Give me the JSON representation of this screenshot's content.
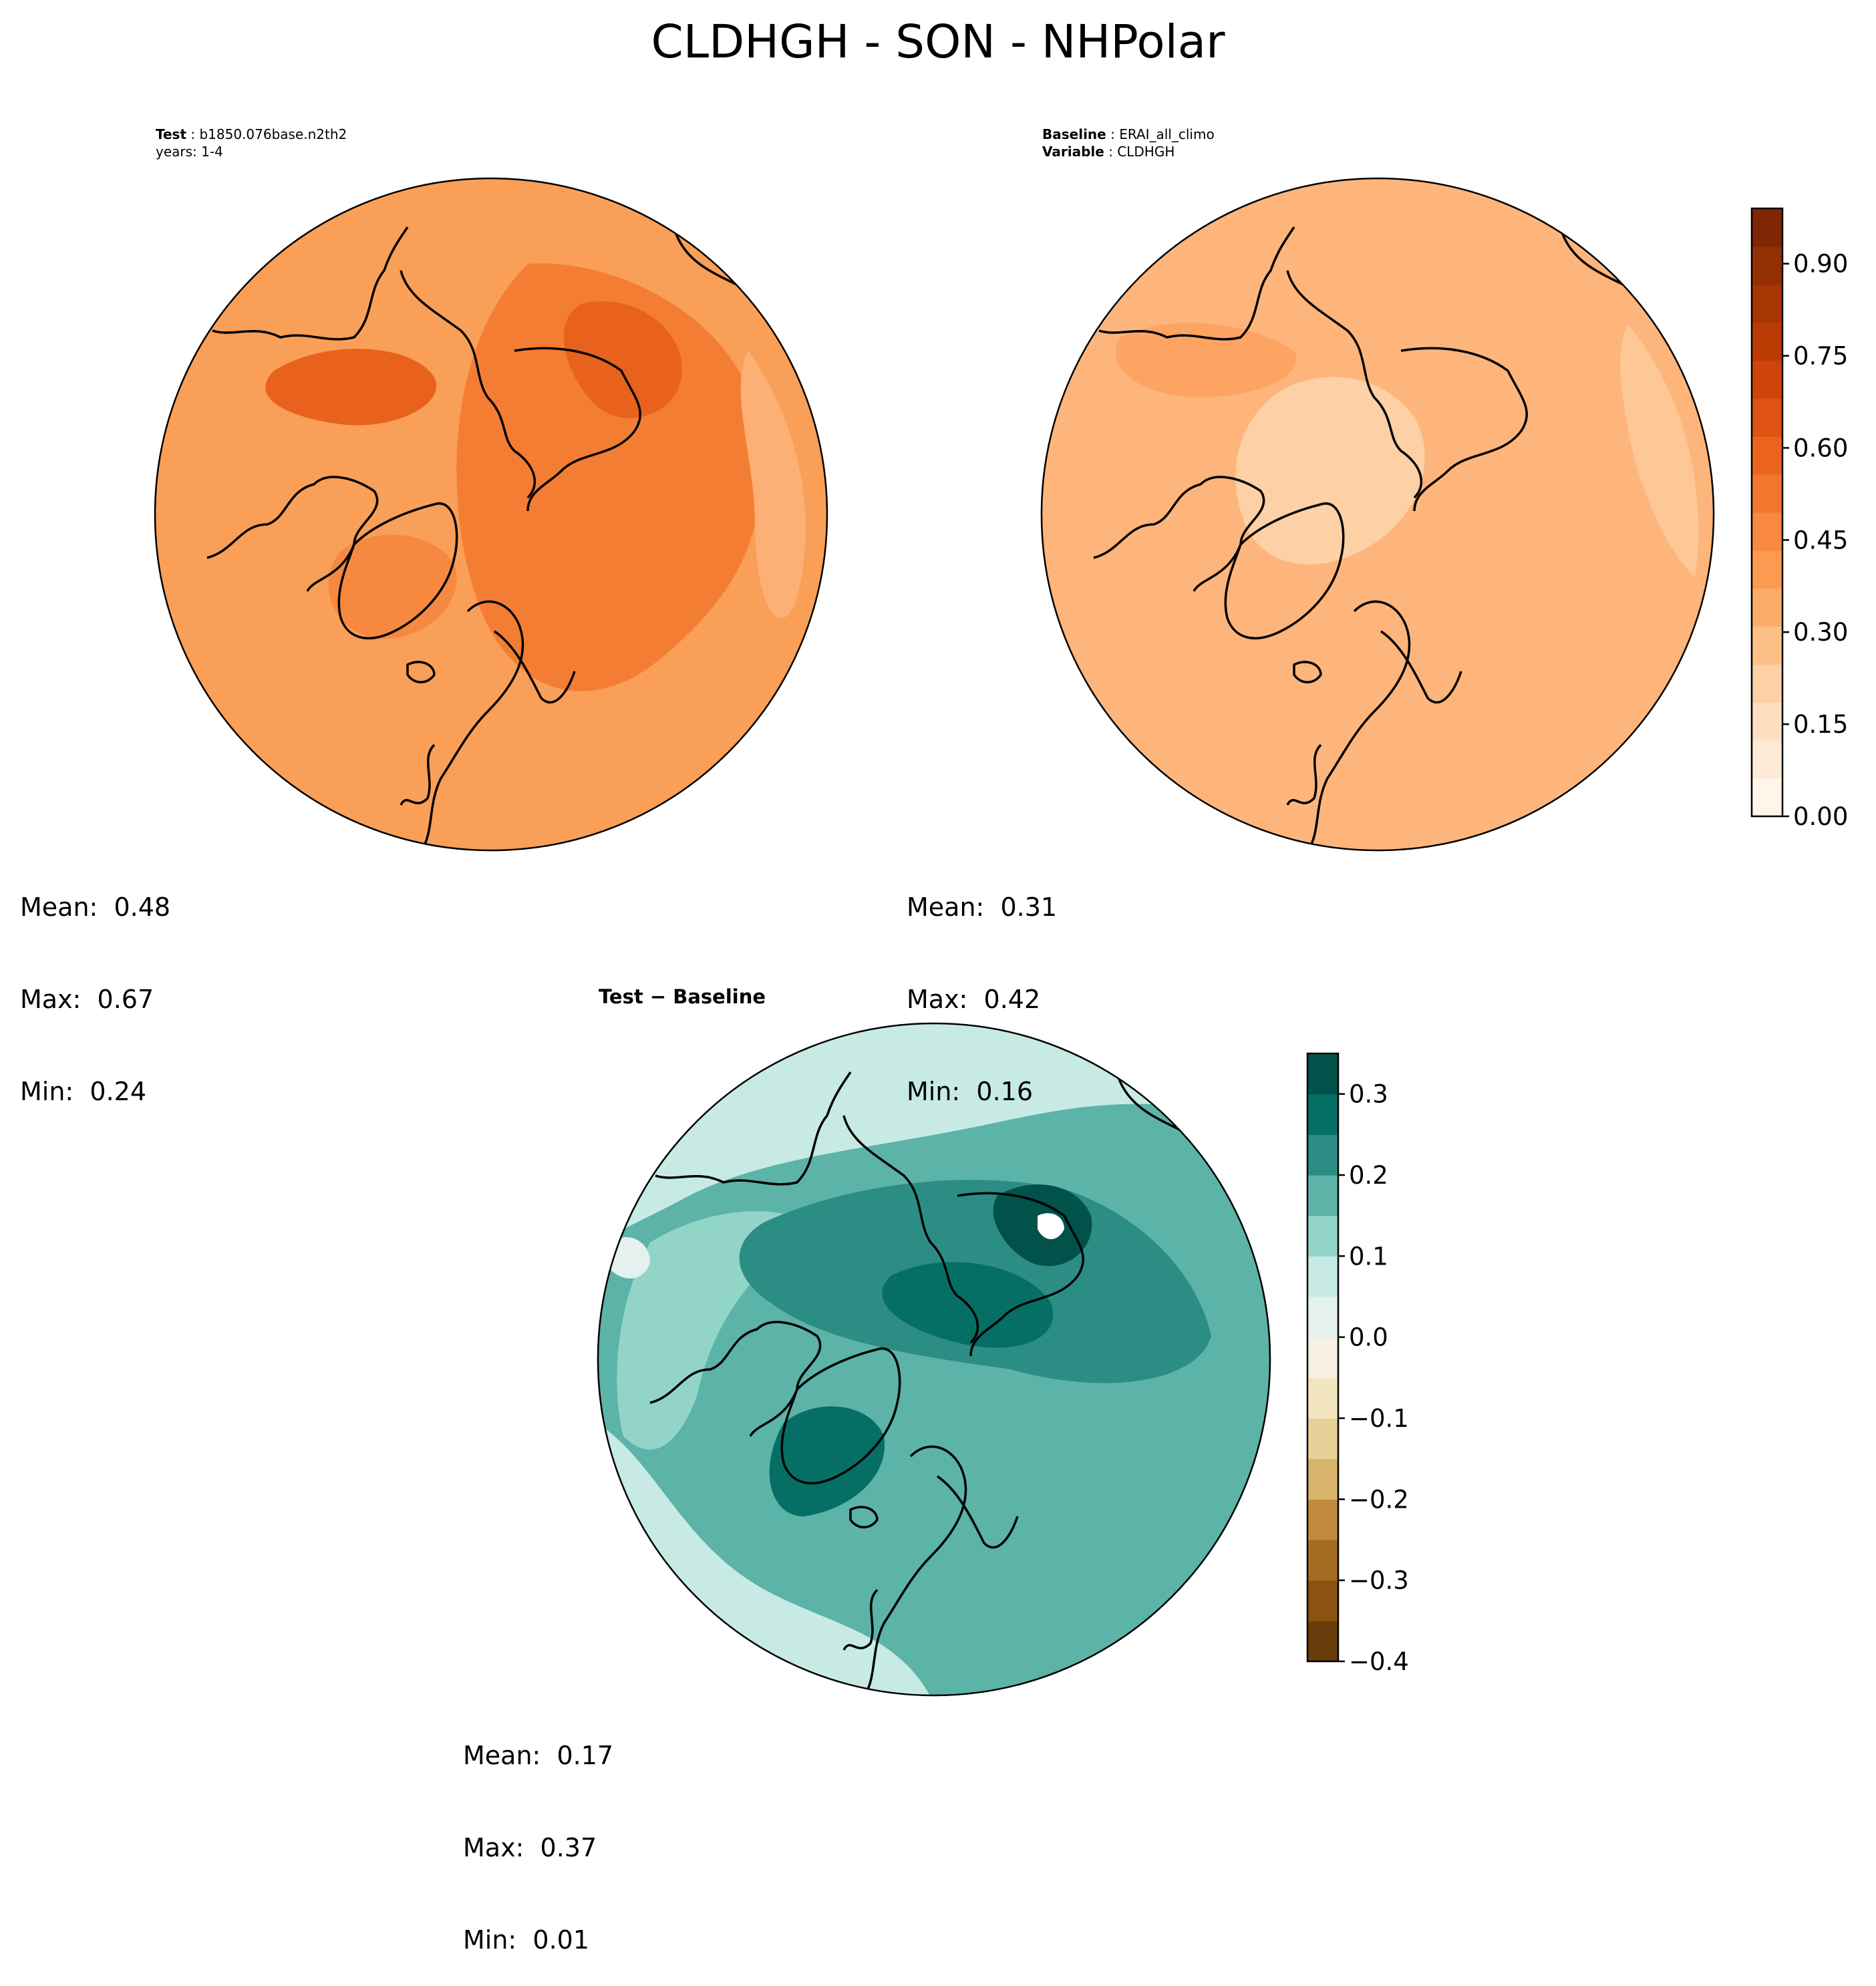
{
  "figure": {
    "title": "CLDHGH - SON - NHPolar"
  },
  "panels": {
    "test": {
      "label": "Test",
      "name": "b1850.076base.n2th2",
      "line2": "years: 1-4",
      "stats": {
        "mean": "Mean:  0.48",
        "max": "Max:  0.67",
        "min": "Min:  0.24"
      }
    },
    "baseline": {
      "label": "Baseline",
      "name": "ERAI_all_climo",
      "label2": "Variable",
      "name2": "CLDHGH",
      "stats": {
        "mean": "Mean:  0.31",
        "max": "Max:  0.42",
        "min": "Min:  0.16"
      }
    },
    "diff": {
      "title": "Test − Baseline",
      "stats": {
        "mean": "Mean:  0.17",
        "max": "Max:  0.37",
        "min": "Min:  0.01"
      }
    }
  },
  "colorbars": {
    "main": {
      "ticks": [
        "0.00",
        "0.15",
        "0.30",
        "0.45",
        "0.60",
        "0.75",
        "0.90"
      ],
      "colors": [
        "#fff5eb",
        "#feebd7",
        "#fee0c1",
        "#fdd1a4",
        "#fdc086",
        "#fdad6b",
        "#fd9a52",
        "#f98841",
        "#f3762f",
        "#eb641e",
        "#df5211",
        "#cf440b",
        "#bb3b04",
        "#a63603",
        "#933003",
        "#7f2704"
      ]
    },
    "diff": {
      "ticks": [
        "−0.4",
        "−0.3",
        "−0.2",
        "−0.1",
        "0.0",
        "0.1",
        "0.2",
        "0.3"
      ],
      "colors": [
        "#6a3b0a",
        "#8a530f",
        "#a56b22",
        "#c18b3e",
        "#d8b46a",
        "#e8d198",
        "#f3e5bf",
        "#f5f0e2",
        "#e4f1ee",
        "#c7eae5",
        "#93d4c9",
        "#5cb3a7",
        "#2c8d84",
        "#066f65",
        "#01524a"
      ]
    }
  },
  "maps": {
    "test": {
      "background": "#f99f57",
      "regions": [
        {
          "color": "#f47d34",
          "lvl": "0.60"
        },
        {
          "color": "#e8621d",
          "lvl": "0.67"
        },
        {
          "color": "#fdb075",
          "lvl": "0.35"
        },
        {
          "color": "#f6893f",
          "lvl": "0.55"
        }
      ]
    },
    "baseline": {
      "background": "#fdb57c",
      "regions": [
        {
          "color": "#fdd0a6",
          "lvl": "0.20"
        },
        {
          "color": "#fda462",
          "lvl": "0.40"
        },
        {
          "color": "#fec796",
          "lvl": "0.25"
        }
      ]
    },
    "diff": {
      "background": "#5cb3a7",
      "regions": [
        {
          "color": "#c7eae5",
          "lvl": "0.05"
        },
        {
          "color": "#93d4c9",
          "lvl": "0.10"
        },
        {
          "color": "#2c8d84",
          "lvl": "0.25"
        },
        {
          "color": "#066f65",
          "lvl": "0.30"
        },
        {
          "color": "#01524a",
          "lvl": "0.35"
        },
        {
          "color": "#e4f1ee",
          "lvl": "0.02"
        },
        {
          "color": "#ffffff",
          "lvl": "0.37"
        }
      ]
    }
  }
}
